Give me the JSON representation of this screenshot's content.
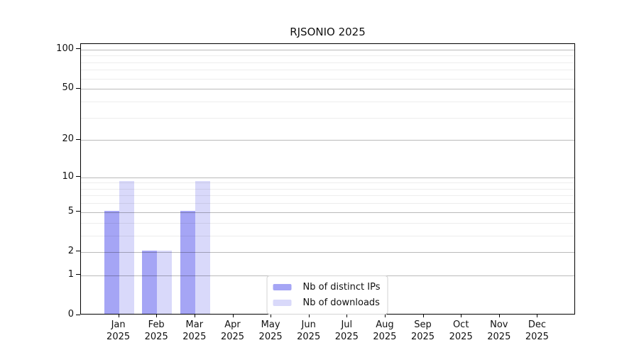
{
  "title": "RJSONIO 2025",
  "chart_data": {
    "type": "bar",
    "title": "RJSONIO 2025",
    "xlabel": "",
    "ylabel": "",
    "scale": "log1p",
    "categories": [
      "Jan",
      "Feb",
      "Mar",
      "Apr",
      "May",
      "Jun",
      "Jul",
      "Aug",
      "Sep",
      "Oct",
      "Nov",
      "Dec"
    ],
    "year": "2025",
    "series": [
      {
        "name": "Nb of distinct IPs",
        "color": "#a5a5f5",
        "values": [
          5,
          2,
          5,
          0,
          0,
          0,
          0,
          0,
          0,
          0,
          0,
          0
        ]
      },
      {
        "name": "Nb of downloads",
        "color": "#d9d9fa",
        "values": [
          9,
          2,
          9,
          0,
          0,
          0,
          0,
          0,
          0,
          0,
          0,
          0
        ]
      }
    ],
    "y_major_ticks": [
      0,
      1,
      2,
      5,
      10,
      20,
      50,
      100
    ],
    "y_minor_ticks": [
      3,
      4,
      6,
      7,
      8,
      9,
      30,
      40,
      60,
      70,
      80,
      90
    ],
    "ylim": [
      0,
      110
    ],
    "grid": "horizontal, drawn over bars",
    "legend_position": "bottom center inside plot"
  },
  "legend": {
    "items": [
      {
        "label": "Nb of distinct IPs",
        "color": "#a5a5f5"
      },
      {
        "label": "Nb of downloads",
        "color": "#d9d9fa"
      }
    ]
  },
  "colors": {
    "background": "#ffffff",
    "axis": "#000000",
    "bar_distinct_ips": "#a5a5f5",
    "bar_downloads": "#d9d9fa",
    "grid_major": "#bababa",
    "grid_minor": "#ededed"
  }
}
